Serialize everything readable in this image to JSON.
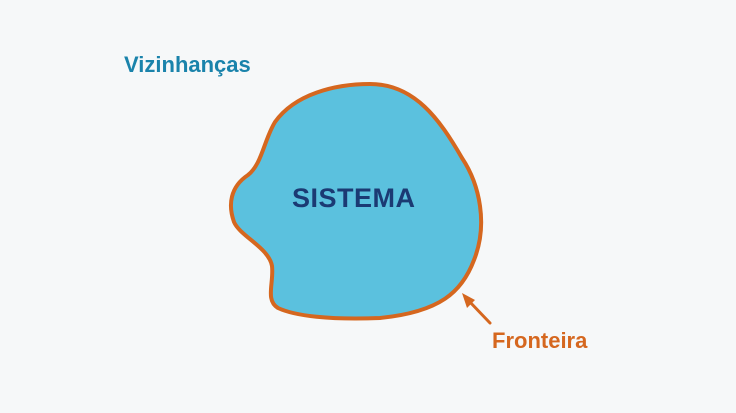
{
  "labels": {
    "surroundings": "Vizinhanças",
    "system": "SISTEMA",
    "boundary": "Fronteira"
  },
  "colors": {
    "background": "#f6f8f9",
    "system_fill": "#5bc1de",
    "boundary_stroke": "#d5671f",
    "surroundings_text": "#1a83ab",
    "system_text": "#1b3a73"
  }
}
